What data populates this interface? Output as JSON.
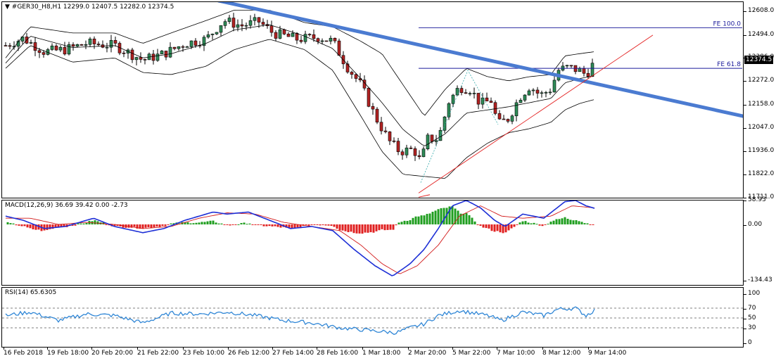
{
  "main": {
    "title": "#GER30_H8,H1  12299.0 12407.5 12282.0 12374.5",
    "current_price": "12374.5",
    "price_ticks": [
      "12608.0",
      "12494.0",
      "12386.0",
      "12272.0",
      "12158.0",
      "12047.0",
      "11936.0",
      "11822.0",
      "11711.0"
    ],
    "fe_labels": [
      "FE 100.0",
      "FE 61.8"
    ],
    "colors": {
      "bull": "#2e8b57",
      "bear": "#b22222",
      "trendline": "#4b7bd1",
      "support": "#e32020",
      "fib": "#1a1a9a",
      "bands": "#000000"
    }
  },
  "macd": {
    "title": "MACD(12,26,9) 36.69 39.42 0.00 -2.73",
    "ticks": [
      "58.93",
      "0.00",
      "-134.43"
    ],
    "colors": {
      "line": "#1d2fd6",
      "signal": "#d21a1a",
      "hist_pos": "#1f9e1f",
      "hist_neg": "#e02020"
    }
  },
  "rsi": {
    "title": "RSI(14) 65.6305",
    "ticks": [
      "100",
      "70",
      "50",
      "30",
      "0"
    ],
    "color": "#2f86d6"
  },
  "time_axis": {
    "labels": [
      "16 Feb 2018",
      "19 Feb 18:00",
      "20 Feb 20:00",
      "21 Feb 22:00",
      "23 Feb 10:00",
      "26 Feb 12:00",
      "27 Feb 14:00",
      "28 Feb 16:00",
      "1 Mar 18:00",
      "2 Mar 20:00",
      "5 Mar 22:00",
      "7 Mar 10:00",
      "8 Mar 12:00",
      "9 Mar 14:00"
    ]
  }
}
